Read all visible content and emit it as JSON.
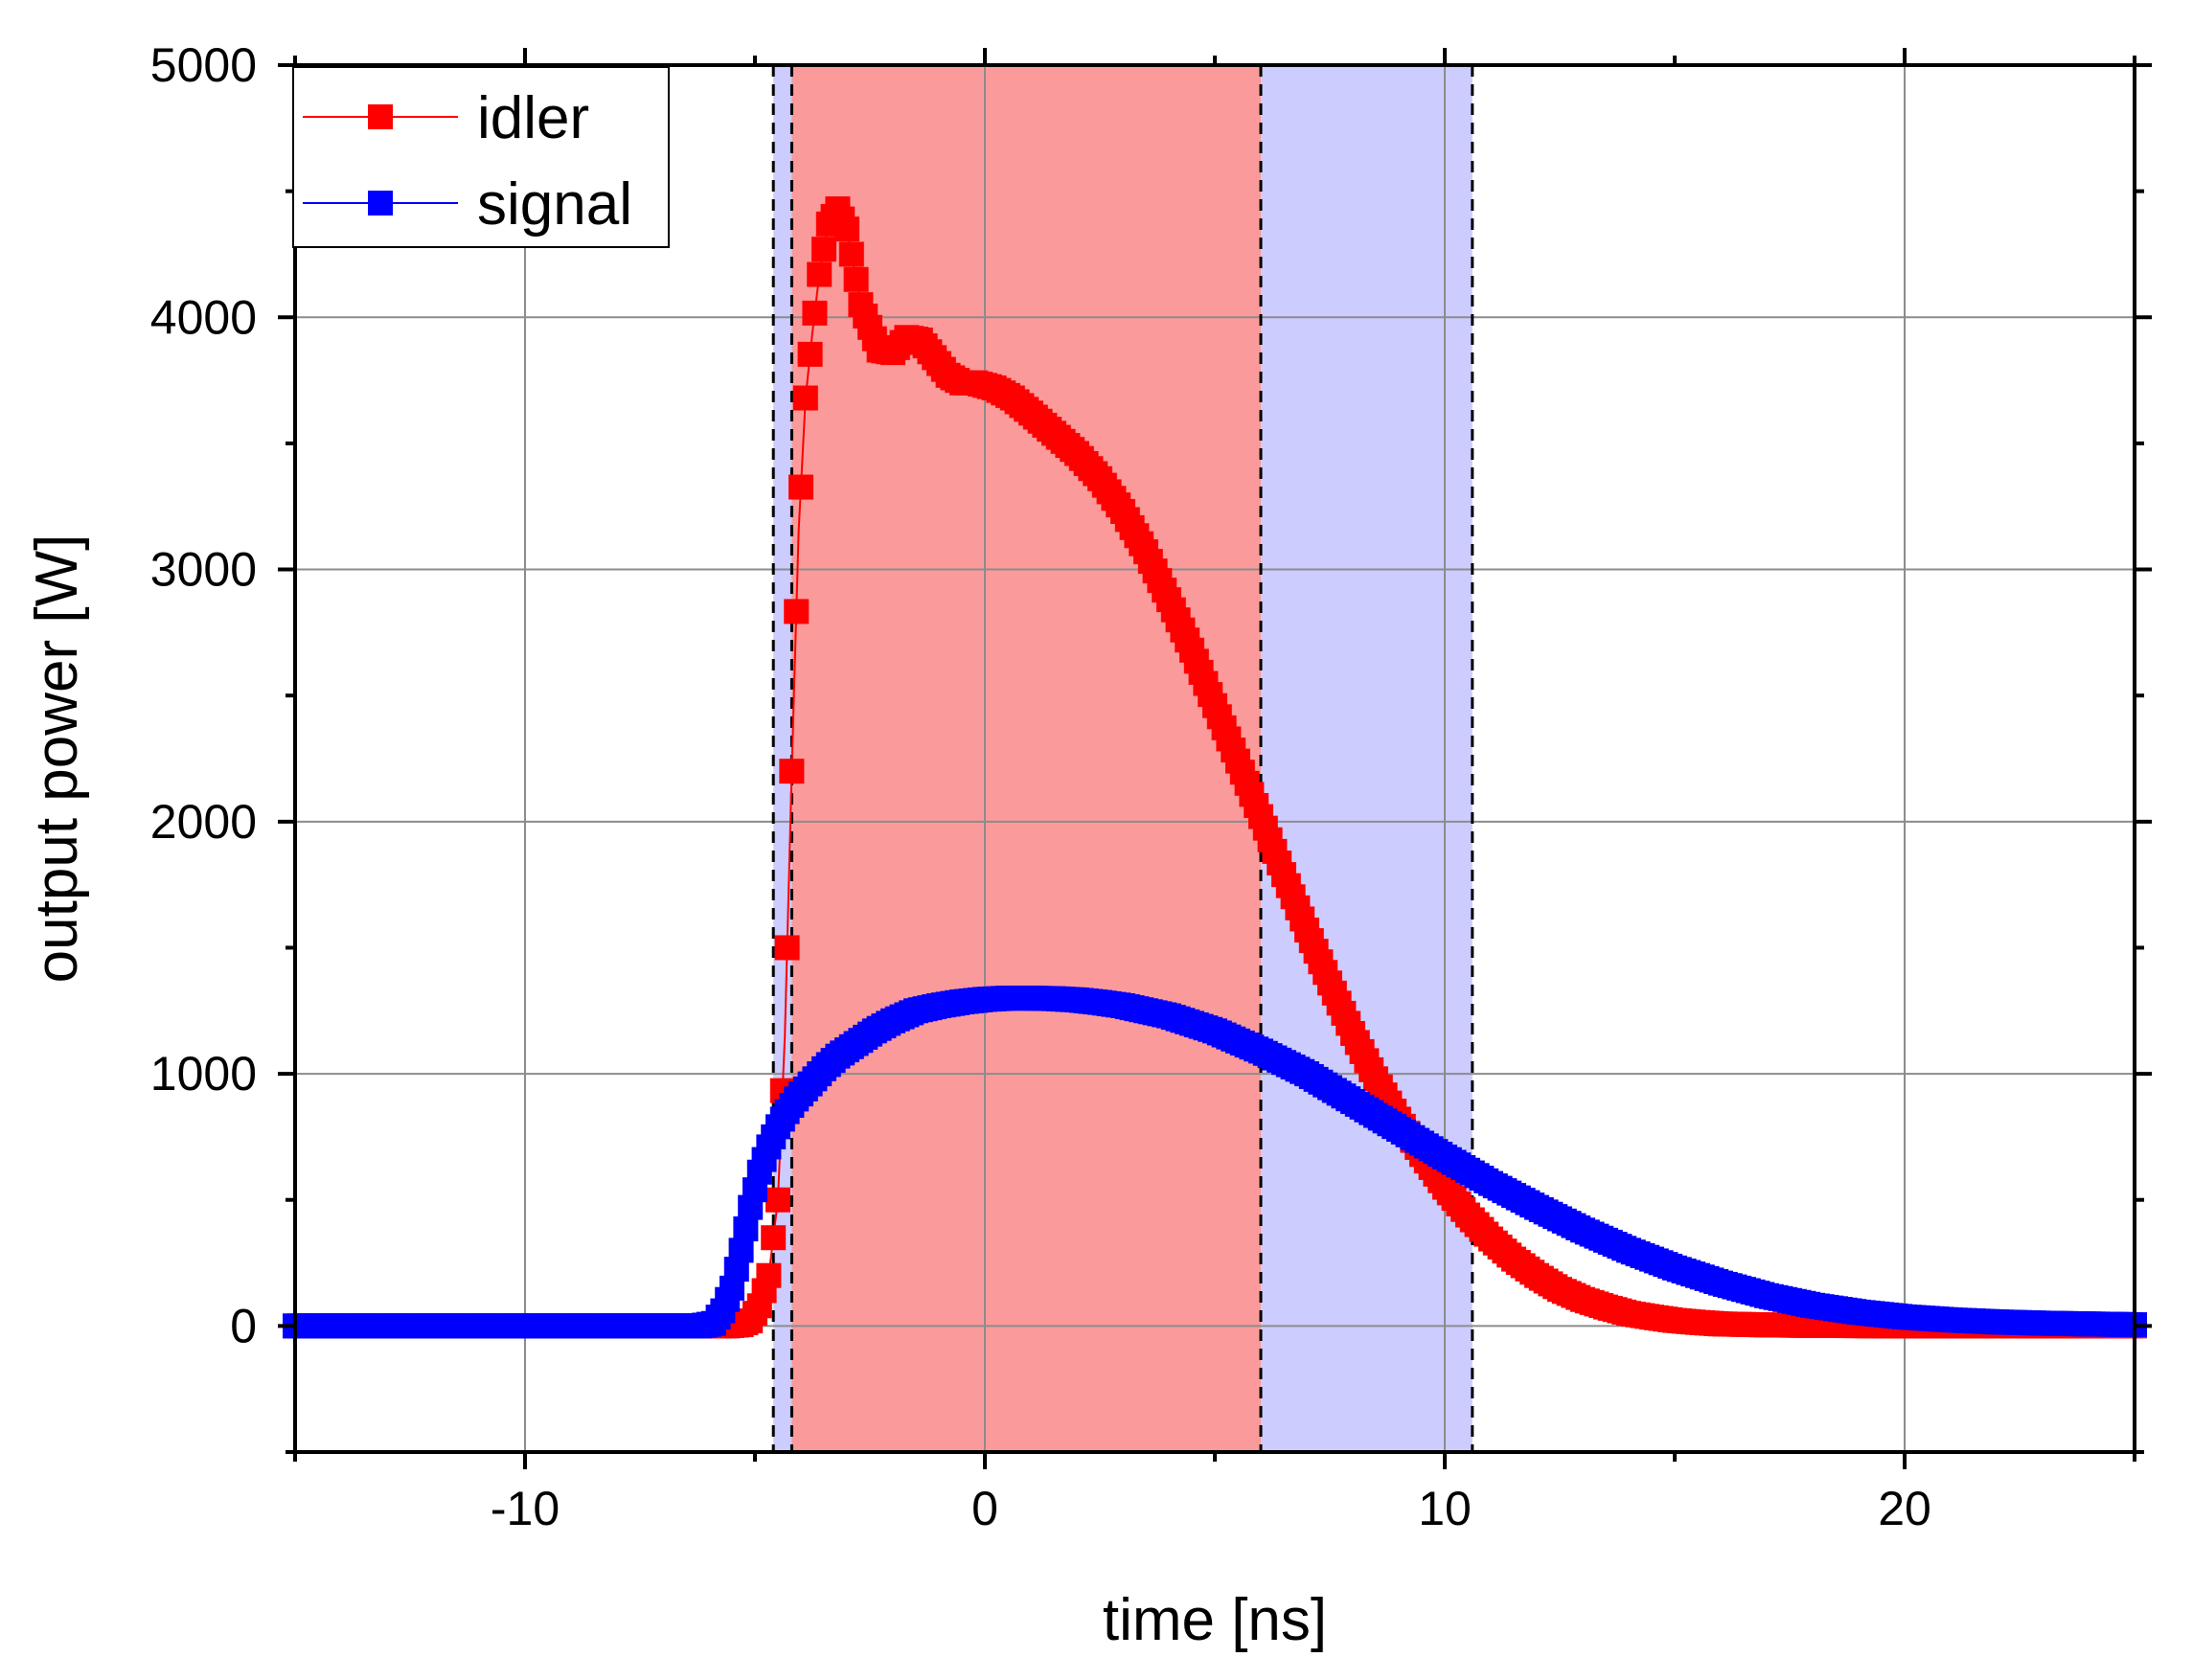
{
  "chart_data": {
    "type": "line",
    "xlabel": "time [ns]",
    "ylabel": "output power [W]",
    "xlim": [
      -15,
      25
    ],
    "ylim": [
      -500,
      5000
    ],
    "x_ticks": [
      -10,
      0,
      10,
      20
    ],
    "x_tick_labels": [
      "-10",
      "0",
      "10",
      "20"
    ],
    "y_ticks": [
      0,
      1000,
      2000,
      3000,
      4000,
      5000
    ],
    "y_tick_labels": [
      "0",
      "1000",
      "2000",
      "3000",
      "4000",
      "5000"
    ],
    "grid": true,
    "legend_position": "top-left",
    "shaded_regions": [
      {
        "name": "signal-window",
        "x_start": -4.6,
        "x_end": 10.6,
        "color": "#ccccff"
      },
      {
        "name": "idler-window",
        "x_start": -4.2,
        "x_end": 6.0,
        "color": "#fa9a9a"
      }
    ],
    "vertical_lines": [
      -4.6,
      -4.2,
      6.0,
      10.6
    ],
    "series": [
      {
        "name": "idler",
        "color": "#ff0000",
        "x": [
          -15,
          -6,
          -5.6,
          -5.3,
          -5.1,
          -4.9,
          -4.7,
          -4.5,
          -4.35,
          -4.2,
          -4.05,
          -3.9,
          -3.75,
          -3.6,
          -3.4,
          -3.2,
          -3.0,
          -2.7,
          -2.3,
          -2.0,
          -1.7,
          -1.4,
          -1.1,
          -0.8,
          -0.5,
          -0.2,
          0.2,
          0.6,
          1.0,
          1.5,
          2.0,
          2.5,
          3.0,
          3.5,
          4.0,
          4.5,
          5.0,
          5.5,
          6.0,
          6.5,
          7.0,
          7.5,
          8.0,
          8.5,
          9.0,
          9.5,
          10.0,
          10.5,
          11.0,
          11.5,
          12.0,
          12.5,
          13.0,
          13.5,
          14.0,
          14.5,
          15.0,
          15.5,
          16.0,
          17.0,
          18.0,
          19.0,
          20.0,
          22.0,
          25.0
        ],
        "y": [
          0,
          0,
          0,
          5,
          20,
          80,
          200,
          500,
          1150,
          2200,
          3150,
          3680,
          3940,
          4170,
          4370,
          4430,
          4350,
          4050,
          3870,
          3860,
          3920,
          3910,
          3840,
          3770,
          3740,
          3740,
          3720,
          3680,
          3620,
          3540,
          3460,
          3360,
          3230,
          3070,
          2880,
          2680,
          2460,
          2240,
          2020,
          1790,
          1570,
          1360,
          1160,
          980,
          820,
          680,
          550,
          440,
          345,
          265,
          200,
          145,
          105,
          75,
          50,
          35,
          22,
          14,
          8,
          4,
          2,
          1,
          0,
          0,
          0
        ]
      },
      {
        "name": "signal",
        "color": "#0000ff",
        "x": [
          -15,
          -6.2,
          -5.9,
          -5.7,
          -5.5,
          -5.3,
          -5.1,
          -4.9,
          -4.7,
          -4.5,
          -4.3,
          -4.1,
          -3.8,
          -3.5,
          -3.2,
          -2.8,
          -2.4,
          -2.0,
          -1.5,
          -1.0,
          -0.5,
          0.0,
          0.5,
          1.0,
          1.5,
          2.0,
          2.5,
          3.0,
          4.0,
          5.0,
          6.0,
          7.0,
          8.0,
          9.0,
          10.0,
          11.0,
          12.0,
          13.0,
          14.0,
          15.0,
          16.0,
          17.0,
          18.0,
          19.0,
          20.0,
          21.0,
          22.0,
          23.0,
          24.0,
          25.0
        ],
        "y": [
          0,
          0,
          10,
          60,
          150,
          300,
          470,
          610,
          710,
          790,
          850,
          900,
          960,
          1020,
          1070,
          1120,
          1170,
          1210,
          1250,
          1270,
          1285,
          1295,
          1300,
          1300,
          1298,
          1293,
          1283,
          1270,
          1230,
          1170,
          1090,
          1000,
          890,
          780,
          670,
          565,
          470,
          380,
          300,
          230,
          170,
          120,
          82,
          55,
          36,
          24,
          16,
          11,
          8,
          5
        ]
      }
    ]
  }
}
